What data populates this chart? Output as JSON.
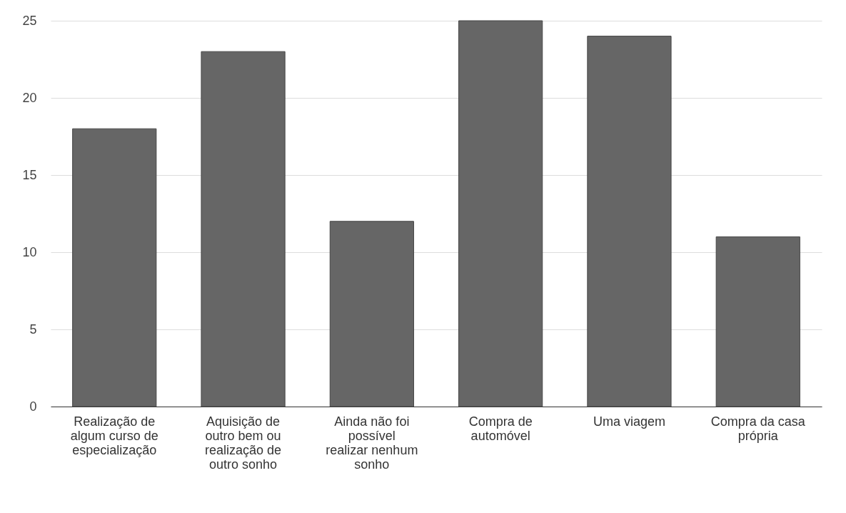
{
  "chart_data": {
    "type": "bar",
    "categories": [
      "Realização de algum curso de especialização",
      "Aquisição de outro bem ou realização de outro sonho",
      "Ainda não foi possível realizar nenhum sonho",
      "Compra de automóvel",
      "Uma viagem",
      "Compra da casa própria"
    ],
    "values": [
      18,
      23,
      12,
      25,
      24,
      11
    ],
    "color": "#666666",
    "ylim": [
      0,
      25
    ],
    "yticks": [
      0,
      5,
      10,
      15,
      20,
      25
    ],
    "grid": "y"
  }
}
